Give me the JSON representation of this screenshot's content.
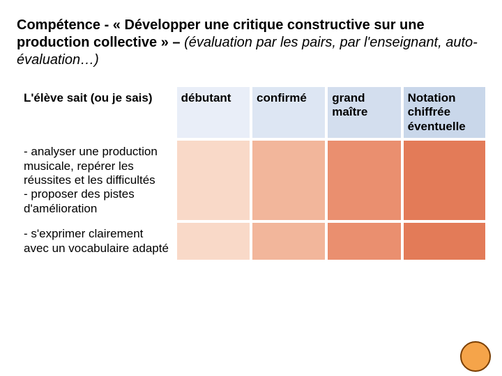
{
  "title": {
    "bold": "Compétence -  « Développer une critique constructive sur une production collective »",
    "dash": " – ",
    "italic": "(évaluation par les pairs, par l'enseignant, auto-évaluation…)"
  },
  "headers": {
    "col0": "L'élève sait (ou je sais)",
    "col1": "débutant",
    "col2": "confirmé",
    "col3": "grand maître",
    "col4": "Notation chiffrée éventuelle"
  },
  "rows": [
    " - analyser une production musicale, repérer les réussites et les difficultés\n- proposer des pistes d'amélioration",
    "- s'exprimer clairement avec un vocabulaire adapté"
  ],
  "colors": {
    "header_bg": [
      "#ffffff",
      "#e9eef8",
      "#dde6f3",
      "#d3deee",
      "#c9d7ea"
    ],
    "body_bg": [
      "#ffffff",
      "#f9d9c8",
      "#f2b69b",
      "#ea8f6f",
      "#e37b58"
    ],
    "header_fontweight": "bold",
    "body_fontsize": 17,
    "header_fontsize": 17,
    "title_fontsize": 20,
    "border_spacing": 4
  }
}
